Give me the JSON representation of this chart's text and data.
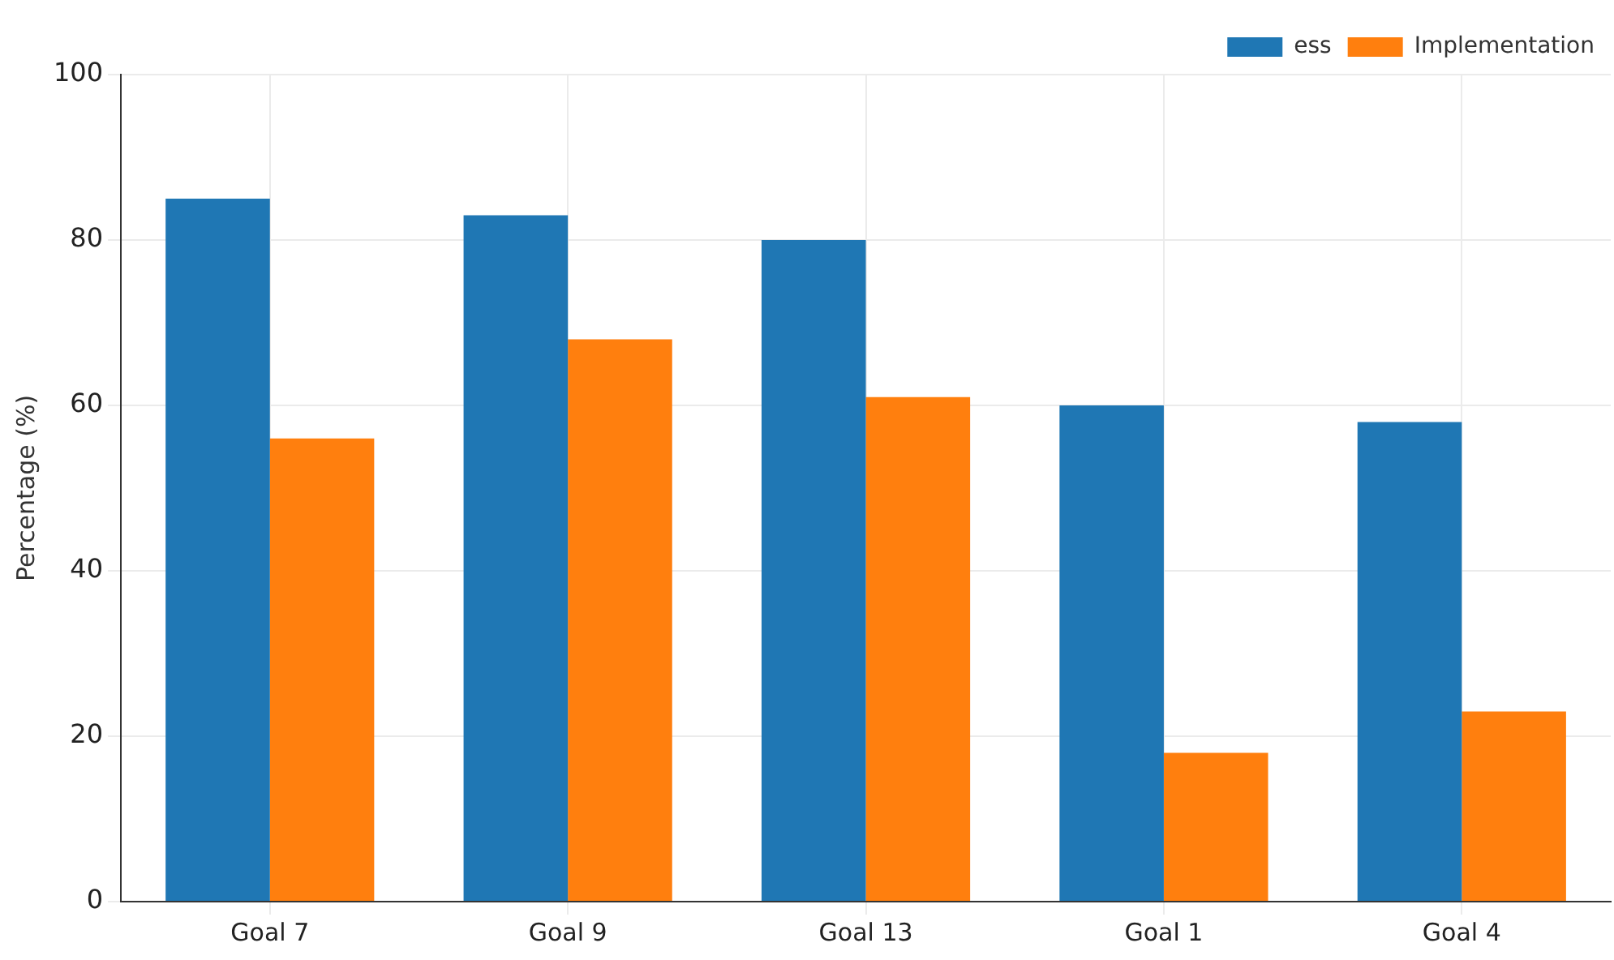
{
  "chart_data": {
    "type": "bar",
    "ylabel": "Percentage (%)",
    "categories": [
      "Goal 7",
      "Goal 9",
      "Goal 13",
      "Goal 1",
      "Goal 4"
    ],
    "series": [
      {
        "name": "ess",
        "color": "#1f77b4",
        "values": [
          85,
          83,
          80,
          60,
          58
        ]
      },
      {
        "name": "Implementation",
        "color": "#ff7f0e",
        "values": [
          56,
          68,
          61,
          18,
          23
        ]
      }
    ],
    "ylim": [
      0,
      100
    ],
    "yticks": [
      0,
      20,
      40,
      60,
      80,
      100
    ],
    "grid": true,
    "legend": "top right"
  }
}
